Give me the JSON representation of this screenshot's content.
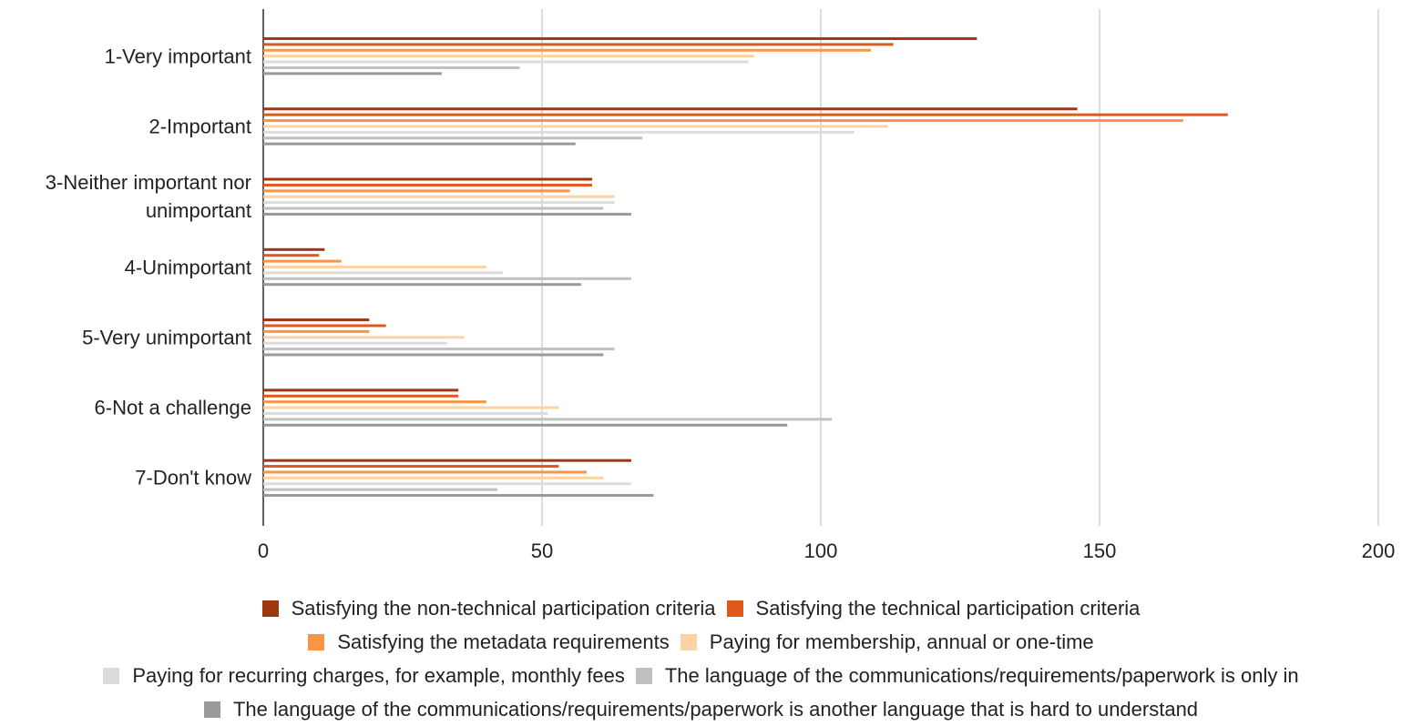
{
  "chart_data": {
    "type": "hbar",
    "categories": [
      "1-Very important",
      "2-Important",
      "3-Neither important nor unimportant",
      "4-Unimportant",
      "5-Very unimportant",
      "6-Not a challenge",
      "7-Don't know"
    ],
    "series": [
      {
        "name": "Satisfying the non-technical participation criteria",
        "color": "#a0360f",
        "values": [
          128,
          146,
          59,
          11,
          19,
          35,
          66
        ]
      },
      {
        "name": "Satisfying the technical participation criteria",
        "color": "#e0581a",
        "values": [
          113,
          173,
          59,
          10,
          22,
          35,
          53
        ]
      },
      {
        "name": "Satisfying the metadata requirements",
        "color": "#f79646",
        "values": [
          109,
          165,
          55,
          14,
          19,
          40,
          58
        ]
      },
      {
        "name": "Paying for membership, annual or one-time",
        "color": "#fcd3a5",
        "values": [
          88,
          112,
          63,
          40,
          36,
          53,
          61
        ]
      },
      {
        "name": "Paying for recurring charges, for example, monthly fees",
        "color": "#dcdcdc",
        "values": [
          87,
          106,
          63,
          43,
          33,
          51,
          66
        ]
      },
      {
        "name": "The language of the communications/requirements/paperwork is only in",
        "color": "#c0c0c0",
        "values": [
          46,
          68,
          61,
          66,
          63,
          102,
          42
        ]
      },
      {
        "name": "The language of the communications/requirements/paperwork is another language that is hard to understand",
        "color": "#999999",
        "values": [
          32,
          56,
          66,
          57,
          61,
          94,
          70
        ]
      }
    ],
    "xlim": [
      0,
      200
    ],
    "xticks": [
      0,
      50,
      100,
      150,
      200
    ],
    "grid": true
  }
}
